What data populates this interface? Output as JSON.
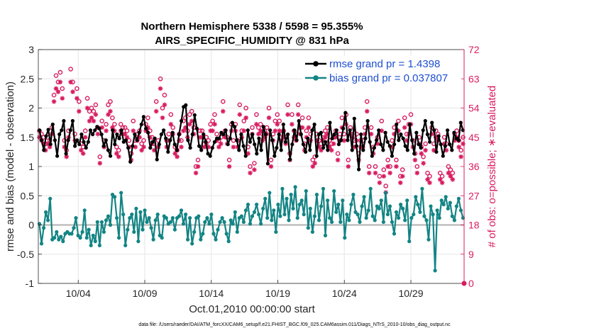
{
  "chart_data": {
    "type": "line",
    "title": "Northern Hemisphere 5338 / 5598 = 95.355%",
    "subtitle": "AIRS_SPECIFIC_HUMIDITY @ 831 hPa",
    "xlabel": "Oct.01,2010 00:00:00 start",
    "ylabel": "rmse and bias (model - observation)",
    "ylabel_right": "# of obs: o=possible; ∗=evaluated",
    "footer": "data file: /Users/raeder/DAI/ATM_forcXX/CAM6_setup/f.e21.FHIST_BGC.f09_025.CAM6assim.011/Diags_NTrS_2010-10/obs_diag_output.nc",
    "xlim": [
      1,
      33
    ],
    "ylim": [
      -1,
      3
    ],
    "ylim_right": [
      0,
      72
    ],
    "x_ticks": [
      {
        "x": 4,
        "label": "10/04"
      },
      {
        "x": 9,
        "label": "10/09"
      },
      {
        "x": 14,
        "label": "10/14"
      },
      {
        "x": 19,
        "label": "10/19"
      },
      {
        "x": 24,
        "label": "10/24"
      },
      {
        "x": 29,
        "label": "10/29"
      }
    ],
    "y_ticks": [
      {
        "v": 3,
        "label": "3"
      },
      {
        "v": 2.5,
        "label": "2.5"
      },
      {
        "v": 2,
        "label": "2"
      },
      {
        "v": 1.5,
        "label": "1.5"
      },
      {
        "v": 1,
        "label": "1"
      },
      {
        "v": 0.5,
        "label": "0.5"
      },
      {
        "v": 0,
        "label": "0"
      },
      {
        "v": -0.5,
        "label": "-0.5"
      },
      {
        "v": -1,
        "label": "-1"
      }
    ],
    "y_ticks_right": [
      {
        "v": 72,
        "label": "72"
      },
      {
        "v": 63,
        "label": "63"
      },
      {
        "v": 54,
        "label": "54"
      },
      {
        "v": 45,
        "label": "45"
      },
      {
        "v": 36,
        "label": "36"
      },
      {
        "v": 27,
        "label": "27"
      },
      {
        "v": 18,
        "label": "18"
      },
      {
        "v": 9,
        "label": "9"
      },
      {
        "v": 0,
        "label": "0"
      }
    ],
    "grid": true,
    "legend_position": "top-right",
    "colors": {
      "rmse": "#000000",
      "bias": "#138484",
      "obs": "#d81b60",
      "zero_line": "#b0b0b0",
      "legend_text": "#1f4fd0",
      "right_axis": "#d81b60"
    },
    "series": [
      {
        "name": "rmse grand pr = 1.4398",
        "axis": "left",
        "values": [
          1.62,
          1.45,
          1.28,
          1.52,
          1.63,
          1.38,
          1.72,
          1.45,
          1.18,
          1.55,
          1.62,
          1.78,
          1.22,
          1.45,
          1.62,
          1.78,
          1.35,
          1.45,
          1.38,
          1.55,
          1.42,
          1.32,
          1.42,
          1.62,
          1.55,
          1.62,
          1.68,
          1.65,
          1.55,
          1.35,
          1.45,
          1.28,
          1.18,
          1.62,
          1.38,
          1.55,
          1.48,
          1.62,
          1.42,
          1.45,
          1.32,
          1.08,
          1.35,
          1.55,
          1.45,
          1.58,
          1.72,
          1.85,
          1.65,
          1.58,
          1.32,
          1.42,
          1.48,
          1.12,
          1.38,
          1.55,
          1.62,
          1.48,
          1.25,
          1.45,
          1.58,
          1.38,
          1.28,
          1.55,
          1.78,
          2.02,
          2.05,
          1.45,
          1.32,
          1.55,
          1.88,
          1.65,
          1.35,
          1.28,
          1.55,
          1.42,
          1.22,
          1.18,
          1.32,
          1.42,
          1.48,
          1.48,
          1.58,
          1.55,
          1.62,
          1.38,
          1.48,
          1.75,
          1.68,
          1.45,
          1.28,
          1.55,
          1.35,
          1.18,
          1.62,
          1.42,
          1.55,
          1.38,
          1.22,
          1.48,
          1.28,
          1.68,
          1.55,
          1.05,
          1.62,
          1.45,
          1.18,
          1.32,
          1.55,
          1.28,
          1.72,
          1.42,
          1.55,
          1.12,
          1.38,
          1.62,
          1.45,
          1.78,
          1.55,
          1.38,
          1.25,
          1.48,
          1.28,
          1.62,
          1.72,
          1.18,
          1.55,
          1.58,
          1.32,
          1.42,
          1.28,
          1.75,
          1.48,
          1.55,
          1.62,
          1.38,
          1.45,
          1.65,
          1.92,
          1.45,
          1.62,
          1.28,
          1.82,
          1.35,
          0.95,
          1.55,
          1.28,
          1.48,
          1.78,
          1.42,
          1.18,
          1.32,
          1.45,
          1.62,
          1.38,
          1.28,
          1.58,
          1.42,
          1.35,
          1.18,
          1.38,
          1.72,
          1.45,
          1.55,
          1.48,
          1.35,
          1.28,
          1.72,
          1.45,
          1.22,
          1.58,
          1.38,
          1.32,
          1.62,
          1.78,
          1.55,
          1.42,
          1.75,
          1.62,
          1.25,
          1.52,
          1.38,
          1.18,
          1.35,
          1.62,
          1.38,
          1.28,
          1.58,
          1.48,
          1.45,
          1.75,
          1.62
        ]
      },
      {
        "name": "bias grand pr = 0.037807",
        "axis": "left",
        "values": [
          0.02,
          -0.32,
          -0.05,
          0.22,
          0.08,
          0.45,
          -0.25,
          -0.22,
          -0.12,
          -0.25,
          -0.2,
          -0.28,
          -0.15,
          -0.12,
          -0.15,
          -0.15,
          -0.05,
          0.12,
          -0.18,
          -0.22,
          -0.12,
          0.25,
          -0.22,
          -0.08,
          -0.35,
          -0.18,
          -0.28,
          0.05,
          -0.35,
          0.05,
          -0.12,
          0.08,
          0.15,
          0.0,
          0.52,
          0.48,
          0.12,
          -0.22,
          0.55,
          0.18,
          -0.35,
          -0.08,
          0.12,
          0.18,
          -0.12,
          0.28,
          -0.28,
          0.22,
          -0.08,
          0.25,
          0.05,
          0.12,
          -0.05,
          -0.25,
          0.08,
          0.18,
          -0.18,
          -0.22,
          0.15,
          0.12,
          0.02,
          0.05,
          0.12,
          -0.08,
          0.12,
          0.15,
          0.25,
          0.02,
          0.18,
          -0.25,
          0.12,
          -0.32,
          -0.12,
          0.12,
          0.15,
          -0.25,
          -0.15,
          0.05,
          0.12,
          0.02,
          0.18,
          -0.15,
          -0.25,
          -0.08,
          0.05,
          0.12,
          0.05,
          -0.15,
          -0.28,
          0.08,
          0.02,
          0.22,
          -0.12,
          0.12,
          0.15,
          0.05,
          0.25,
          0.35,
          0.02,
          0.15,
          0.22,
          0.35,
          0.18,
          0.02,
          0.28,
          0.45,
          0.12,
          0.55,
          0.08,
          0.25,
          -0.12,
          0.35,
          0.15,
          0.62,
          0.18,
          0.45,
          0.08,
          0.52,
          0.28,
          0.65,
          0.12,
          0.35,
          0.42,
          0.18,
          0.58,
          -0.05,
          0.28,
          -0.12,
          0.15,
          0.52,
          0.08,
          0.32,
          0.62,
          -0.18,
          0.42,
          0.12,
          0.05,
          0.58,
          0.22,
          0.35,
          0.05,
          0.42,
          -0.22,
          0.18,
          0.08,
          0.35,
          0.52,
          0.22,
          0.18,
          0.05,
          0.32,
          0.48,
          0.12,
          0.25,
          0.62,
          0.15,
          0.08,
          0.32,
          0.28,
          0.42,
          0.05,
          0.55,
          0.18,
          0.32,
          0.05,
          -0.15,
          0.22,
          0.12,
          0.35,
          0.28,
          0.08,
          0.42,
          -0.28,
          0.12,
          0.18,
          0.48,
          0.35,
          0.22,
          0.62,
          0.15,
          0.08,
          -0.25,
          0.32,
          0.18,
          -0.78,
          0.25,
          0.12,
          0.42,
          0.35,
          0.48,
          0.28,
          0.38,
          0.15,
          0.08,
          0.32,
          0.45,
          0.25,
          0.12
        ]
      },
      {
        "name": "obs possible",
        "axis": "right",
        "values": [
          47,
          46,
          45,
          43,
          45,
          44,
          48,
          58,
          64,
          62,
          65,
          60,
          44,
          41,
          47,
          66,
          62,
          46,
          60,
          56,
          43,
          42,
          47,
          57,
          53,
          54,
          53,
          55,
          48,
          39,
          50,
          44,
          49,
          55,
          56,
          51,
          49,
          42,
          41,
          49,
          48,
          48,
          47,
          44,
          40,
          50,
          44,
          46,
          47,
          43,
          44,
          49,
          51,
          47,
          45,
          43,
          56,
          44,
          63,
          54,
          58,
          44,
          46,
          52,
          48,
          42,
          41,
          46,
          44,
          50,
          51,
          47,
          52,
          53,
          48,
          36,
          38,
          47,
          47,
          44,
          45,
          44,
          49,
          50,
          52,
          46,
          44,
          45,
          56,
          47,
          45,
          38,
          49,
          44,
          49,
          44,
          55,
          47,
          50,
          54,
          42,
          36,
          48,
          37,
          52,
          48,
          49,
          46,
          47,
          48,
          54,
          38,
          46,
          50,
          52,
          50,
          46,
          47,
          45,
          55,
          40,
          52,
          47,
          46,
          55,
          48,
          51,
          43,
          47,
          51,
          46,
          38,
          39,
          46,
          44,
          43,
          46,
          47,
          48,
          44,
          43,
          45,
          47,
          40,
          46,
          51,
          46,
          52,
          38,
          48,
          47,
          44,
          46,
          40,
          44,
          44,
          48,
          56,
          36,
          48,
          42,
          36,
          45,
          33,
          50,
          35,
          30,
          38,
          36,
          44,
          48,
          38,
          50,
          33,
          35,
          51,
          46,
          49,
          52,
          44,
          40,
          36,
          45,
          42,
          39,
          43,
          34,
          33,
          48,
          43,
          47,
          46,
          34,
          33,
          45,
          43,
          36,
          35,
          34,
          46,
          47,
          44,
          41,
          45
        ]
      },
      {
        "name": "obs evaluated",
        "axis": "right",
        "values": [
          45,
          44,
          43,
          41,
          43,
          42,
          46,
          56,
          60,
          59,
          62,
          57,
          42,
          39,
          45,
          62,
          59,
          44,
          57,
          53,
          41,
          40,
          45,
          54,
          50,
          51,
          50,
          52,
          46,
          37,
          48,
          42,
          47,
          52,
          53,
          48,
          47,
          40,
          39,
          47,
          46,
          46,
          45,
          42,
          38,
          47,
          42,
          44,
          45,
          41,
          42,
          47,
          48,
          45,
          43,
          41,
          53,
          42,
          60,
          51,
          55,
          42,
          44,
          49,
          46,
          40,
          39,
          44,
          42,
          47,
          48,
          45,
          49,
          50,
          46,
          34,
          36,
          45,
          45,
          42,
          43,
          42,
          47,
          47,
          49,
          44,
          42,
          43,
          53,
          45,
          43,
          36,
          47,
          42,
          47,
          42,
          52,
          45,
          47,
          51,
          40,
          34,
          46,
          35,
          49,
          46,
          47,
          44,
          45,
          46,
          51,
          36,
          44,
          47,
          49,
          47,
          44,
          45,
          43,
          52,
          38,
          49,
          45,
          44,
          52,
          46,
          48,
          41,
          45,
          48,
          44,
          36,
          37,
          44,
          42,
          41,
          44,
          45,
          46,
          42,
          41,
          43,
          45,
          38,
          44,
          48,
          44,
          49,
          36,
          46,
          45,
          42,
          44,
          38,
          42,
          42,
          46,
          53,
          34,
          46,
          40,
          34,
          43,
          31,
          47,
          33,
          28,
          36,
          34,
          42,
          46,
          36,
          47,
          31,
          33,
          48,
          44,
          46,
          49,
          42,
          38,
          34,
          43,
          40,
          37,
          41,
          32,
          31,
          46,
          41,
          45,
          44,
          32,
          31,
          43,
          41,
          34,
          33,
          32,
          44,
          45,
          42,
          39,
          43
        ]
      }
    ]
  }
}
